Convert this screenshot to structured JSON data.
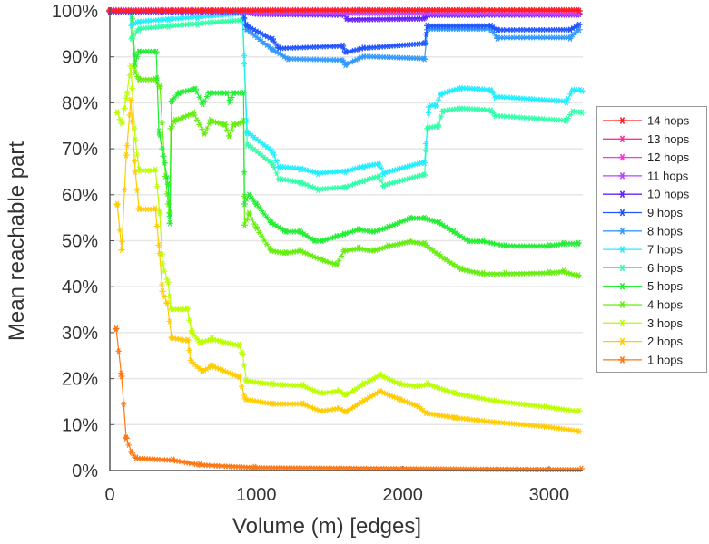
{
  "chart_data": {
    "type": "line",
    "title": "",
    "xlabel": "Volume (m) [edges]",
    "ylabel": "Mean reachable part",
    "xlim": [
      0,
      3230
    ],
    "ylim": [
      0,
      100
    ],
    "xticks": [
      0,
      1000,
      2000,
      3000
    ],
    "xtick_labels": [
      "0",
      "1000",
      "2000",
      "3000"
    ],
    "yticks": [
      0,
      10,
      20,
      30,
      40,
      50,
      60,
      70,
      80,
      90,
      100
    ],
    "ytick_labels": [
      "0%",
      "10%",
      "20%",
      "30%",
      "40%",
      "50%",
      "60%",
      "70%",
      "80%",
      "90%",
      "100%"
    ],
    "grid": "horizontal",
    "legend_placement": "right-outside",
    "marker": "asterisk",
    "series": [
      {
        "name": "14 hops",
        "color": "#ff2020",
        "points": [
          [
            0,
            100
          ],
          [
            3205,
            100
          ]
        ]
      },
      {
        "name": "13 hops",
        "color": "#ff3399",
        "points": [
          [
            0,
            100
          ],
          [
            3205,
            100
          ]
        ]
      },
      {
        "name": "12 hops",
        "color": "#ff33dd",
        "points": [
          [
            0,
            100
          ],
          [
            3205,
            100
          ]
        ]
      },
      {
        "name": "11 hops",
        "color": "#bb44ff",
        "points": [
          [
            0,
            100
          ],
          [
            907,
            100
          ],
          [
            1000,
            99.6
          ],
          [
            3205,
            99.5
          ]
        ]
      },
      {
        "name": "10 hops",
        "color": "#6622ff",
        "points": [
          [
            0,
            100
          ],
          [
            907,
            100
          ],
          [
            1000,
            99.5
          ],
          [
            1600,
            99.3
          ],
          [
            1620,
            98.3
          ],
          [
            2149,
            98.5
          ],
          [
            2168,
            99.3
          ],
          [
            3205,
            99.3
          ]
        ]
      },
      {
        "name": "9 hops",
        "color": "#2255ff",
        "points": [
          [
            0,
            100
          ],
          [
            907,
            100
          ],
          [
            932,
            97
          ],
          [
            1112,
            93.9
          ],
          [
            1155,
            92
          ],
          [
            1590,
            92.5
          ],
          [
            1609,
            91.1
          ],
          [
            1733,
            92
          ],
          [
            2149,
            93
          ],
          [
            2168,
            96.8
          ],
          [
            2602,
            96.8
          ],
          [
            2646,
            95.9
          ],
          [
            3143,
            95.9
          ],
          [
            3205,
            97
          ]
        ]
      },
      {
        "name": "8 hops",
        "color": "#3399ff",
        "points": [
          [
            0,
            100
          ],
          [
            907,
            100
          ],
          [
            932,
            96
          ],
          [
            1112,
            91.5
          ],
          [
            1217,
            89.5
          ],
          [
            1590,
            89.2
          ],
          [
            1609,
            88.2
          ],
          [
            1733,
            90
          ],
          [
            2149,
            89.5
          ],
          [
            2168,
            95.9
          ],
          [
            2602,
            95.9
          ],
          [
            2646,
            94
          ],
          [
            3143,
            94
          ],
          [
            3205,
            95.9
          ]
        ]
      },
      {
        "name": "7 hops",
        "color": "#22eeff",
        "points": [
          [
            0,
            100
          ],
          [
            137,
            100
          ],
          [
            149,
            96.8
          ],
          [
            199,
            97.5
          ],
          [
            400,
            98
          ],
          [
            600,
            98.5
          ],
          [
            907,
            99.2
          ],
          [
            938,
            73.4
          ],
          [
            1112,
            69.2
          ],
          [
            1155,
            65.9
          ],
          [
            1300,
            65.5
          ],
          [
            1422,
            64.5
          ],
          [
            1609,
            64.9
          ],
          [
            1733,
            65.9
          ],
          [
            1838,
            66.5
          ],
          [
            1870,
            64.5
          ],
          [
            2149,
            66.9
          ],
          [
            2180,
            79.1
          ],
          [
            2230,
            79.3
          ],
          [
            2261,
            81.7
          ],
          [
            2397,
            83
          ],
          [
            2602,
            82.6
          ],
          [
            2634,
            81.1
          ],
          [
            3118,
            80.1
          ],
          [
            3161,
            82.6
          ],
          [
            3224,
            82.6
          ]
        ]
      },
      {
        "name": "6 hops",
        "color": "#33ffaa",
        "points": [
          [
            0,
            100
          ],
          [
            137,
            100
          ],
          [
            149,
            93.9
          ],
          [
            199,
            95.9
          ],
          [
            400,
            96.5
          ],
          [
            600,
            97
          ],
          [
            907,
            97.8
          ],
          [
            938,
            70.8
          ],
          [
            1112,
            66.5
          ],
          [
            1155,
            63.3
          ],
          [
            1300,
            62.5
          ],
          [
            1422,
            61
          ],
          [
            1609,
            61.5
          ],
          [
            1733,
            62.9
          ],
          [
            1838,
            63.9
          ],
          [
            1870,
            61.9
          ],
          [
            2149,
            64.3
          ],
          [
            2168,
            74.4
          ],
          [
            2242,
            74.8
          ],
          [
            2273,
            78.1
          ],
          [
            2397,
            78.7
          ],
          [
            2602,
            78.3
          ],
          [
            2634,
            77.1
          ],
          [
            3118,
            76.1
          ],
          [
            3161,
            78.1
          ],
          [
            3224,
            77.9
          ]
        ]
      },
      {
        "name": "5 hops",
        "color": "#22ee33",
        "points": [
          [
            0,
            100
          ],
          [
            149,
            100
          ],
          [
            174,
            88.6
          ],
          [
            199,
            91.1
          ],
          [
            317,
            91.1
          ],
          [
            335,
            73.8
          ],
          [
            366,
            68.4
          ],
          [
            398,
            62.3
          ],
          [
            410,
            53.8
          ],
          [
            422,
            80.3
          ],
          [
            472,
            82.1
          ],
          [
            584,
            83
          ],
          [
            634,
            79.7
          ],
          [
            677,
            82.1
          ],
          [
            801,
            82.1
          ],
          [
            820,
            80.1
          ],
          [
            845,
            82.1
          ],
          [
            913,
            82.2
          ],
          [
            920,
            58
          ],
          [
            950,
            60
          ],
          [
            1000,
            58
          ],
          [
            1100,
            54
          ],
          [
            1200,
            52
          ],
          [
            1300,
            52
          ],
          [
            1400,
            50
          ],
          [
            1450,
            50
          ],
          [
            1550,
            51
          ],
          [
            1600,
            51.5
          ],
          [
            1700,
            52.5
          ],
          [
            1800,
            52
          ],
          [
            1900,
            53
          ],
          [
            2050,
            55
          ],
          [
            2150,
            55
          ],
          [
            2250,
            54
          ],
          [
            2350,
            52
          ],
          [
            2450,
            50
          ],
          [
            2550,
            50
          ],
          [
            2700,
            49
          ],
          [
            3000,
            49
          ],
          [
            3100,
            49.5
          ],
          [
            3200,
            49.5
          ]
        ]
      },
      {
        "name": "4 hops",
        "color": "#66ee11",
        "points": [
          [
            0,
            100
          ],
          [
            137,
            100
          ],
          [
            174,
            86.6
          ],
          [
            199,
            85.2
          ],
          [
            311,
            85.2
          ],
          [
            342,
            83.6
          ],
          [
            380,
            64
          ],
          [
            398,
            58
          ],
          [
            410,
            56
          ],
          [
            416,
            74.4
          ],
          [
            447,
            76.3
          ],
          [
            571,
            77.9
          ],
          [
            646,
            73.4
          ],
          [
            689,
            76.3
          ],
          [
            789,
            75.3
          ],
          [
            814,
            72.8
          ],
          [
            845,
            75.3
          ],
          [
            913,
            76.1
          ],
          [
            920,
            53.4
          ],
          [
            950,
            56
          ],
          [
            1000,
            53
          ],
          [
            1100,
            48
          ],
          [
            1200,
            47.5
          ],
          [
            1300,
            48
          ],
          [
            1450,
            46
          ],
          [
            1550,
            45
          ],
          [
            1600,
            48
          ],
          [
            1700,
            48.5
          ],
          [
            1800,
            48
          ],
          [
            1900,
            49
          ],
          [
            2050,
            50
          ],
          [
            2150,
            49.5
          ],
          [
            2250,
            47
          ],
          [
            2400,
            44
          ],
          [
            2550,
            43
          ],
          [
            2700,
            43
          ],
          [
            3000,
            43.2
          ],
          [
            3100,
            43.5
          ],
          [
            3200,
            42.5
          ]
        ]
      },
      {
        "name": "3 hops",
        "color": "#bbff00",
        "points": [
          [
            50,
            78
          ],
          [
            81,
            75.5
          ],
          [
            112,
            81
          ],
          [
            143,
            88
          ],
          [
            174,
            72
          ],
          [
            199,
            65.5
          ],
          [
            311,
            65.5
          ],
          [
            341,
            56
          ],
          [
            360,
            45
          ],
          [
            398,
            41
          ],
          [
            416,
            35.3
          ],
          [
            528,
            35.3
          ],
          [
            559,
            30.4
          ],
          [
            615,
            28
          ],
          [
            696,
            28.8
          ],
          [
            882,
            27.4
          ],
          [
            907,
            25.4
          ],
          [
            932,
            19.7
          ],
          [
            1112,
            19
          ],
          [
            1317,
            18.7
          ],
          [
            1441,
            17
          ],
          [
            1565,
            17.5
          ],
          [
            1609,
            16.6
          ],
          [
            1733,
            19
          ],
          [
            1845,
            21
          ],
          [
            1981,
            19
          ],
          [
            2106,
            18.5
          ],
          [
            2170,
            19
          ],
          [
            2354,
            17
          ],
          [
            2634,
            15.3
          ],
          [
            2975,
            14
          ],
          [
            3205,
            13
          ]
        ]
      },
      {
        "name": "2 hops",
        "color": "#ffcc00",
        "points": [
          [
            50,
            58
          ],
          [
            81,
            48
          ],
          [
            112,
            68.6
          ],
          [
            143,
            80.6
          ],
          [
            174,
            65
          ],
          [
            199,
            57
          ],
          [
            311,
            57
          ],
          [
            335,
            49
          ],
          [
            360,
            39
          ],
          [
            391,
            36.5
          ],
          [
            422,
            29
          ],
          [
            534,
            28.4
          ],
          [
            553,
            24
          ],
          [
            634,
            21.7
          ],
          [
            696,
            22.9
          ],
          [
            882,
            20.5
          ],
          [
            925,
            15.6
          ],
          [
            1112,
            14.6
          ],
          [
            1317,
            14.6
          ],
          [
            1441,
            13
          ],
          [
            1565,
            13.6
          ],
          [
            1609,
            12.8
          ],
          [
            1733,
            15.2
          ],
          [
            1845,
            17.3
          ],
          [
            1981,
            15.5
          ],
          [
            2106,
            14
          ],
          [
            2160,
            12.5
          ],
          [
            2354,
            11.5
          ],
          [
            2634,
            10.5
          ],
          [
            2975,
            9.5
          ],
          [
            3205,
            8.5
          ]
        ]
      },
      {
        "name": "1 hops",
        "color": "#ff7711",
        "points": [
          [
            43,
            30.9
          ],
          [
            80,
            20.5
          ],
          [
            112,
            7
          ],
          [
            149,
            4
          ],
          [
            180,
            2.8
          ],
          [
            429,
            2.4
          ],
          [
            615,
            1.4
          ],
          [
            988,
            0.8
          ],
          [
            3220,
            0.4
          ]
        ]
      }
    ]
  }
}
